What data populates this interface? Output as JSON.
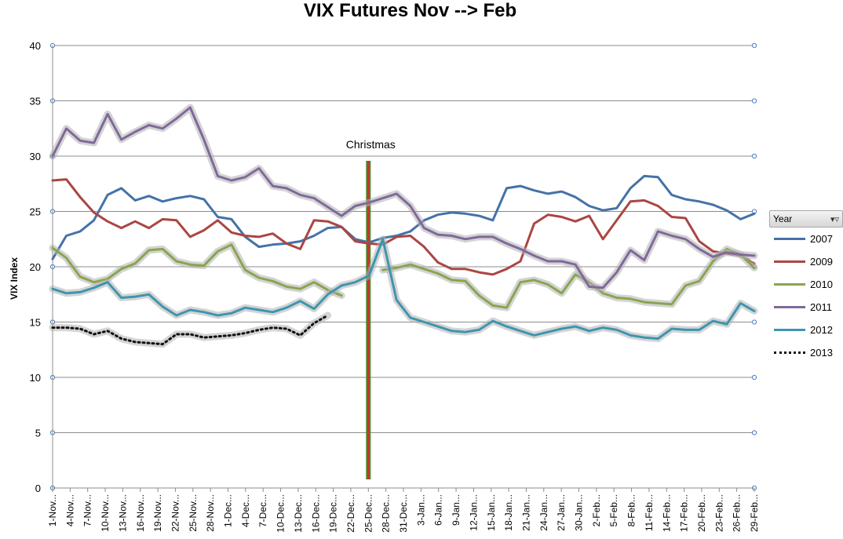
{
  "chart_data": {
    "type": "line",
    "title": "VIX Futures Nov --> Feb",
    "ylabel": "VIX Index",
    "xlabel": "",
    "ylim": [
      0,
      40
    ],
    "yticks": [
      0,
      5,
      10,
      15,
      20,
      25,
      30,
      35,
      40
    ],
    "grid": true,
    "legend_title": "Year",
    "legend_position": "right",
    "annotation": {
      "text": "Christmas",
      "x_label": "25-Dec..."
    },
    "x_tick_labels": [
      "1-Nov...",
      "4-Nov...",
      "7-Nov...",
      "10-Nov...",
      "13-Nov...",
      "16-Nov...",
      "19-Nov...",
      "22-Nov...",
      "25-Nov...",
      "28-Nov...",
      "1-Dec...",
      "4-Dec...",
      "7-Dec...",
      "10-Dec...",
      "13-Dec...",
      "16-Dec...",
      "19-Dec...",
      "22-Dec...",
      "25-Dec...",
      "28-Dec...",
      "31-Dec...",
      "3-Jan...",
      "6-Jan...",
      "9-Jan...",
      "12-Jan...",
      "15-Jan...",
      "18-Jan...",
      "21-Jan...",
      "24-Jan...",
      "27-Jan...",
      "30-Jan...",
      "2-Feb...",
      "5-Feb...",
      "8-Feb...",
      "11-Feb...",
      "14-Feb...",
      "17-Feb...",
      "20-Feb...",
      "23-Feb...",
      "26-Feb...",
      "29-Feb..."
    ],
    "series": [
      {
        "name": "2007",
        "color": "#4572a7",
        "style": "solid",
        "values": [
          20.7,
          22.8,
          23.2,
          24.2,
          26.5,
          27.1,
          26.0,
          26.4,
          25.9,
          26.2,
          26.4,
          26.1,
          24.5,
          24.3,
          22.7,
          21.8,
          22.0,
          22.1,
          22.3,
          22.8,
          23.5,
          23.6,
          22.5,
          22.2,
          22.6,
          22.8,
          23.2,
          24.2,
          24.7,
          24.9,
          24.8,
          24.6,
          24.2,
          27.1,
          27.3,
          26.9,
          26.6,
          26.8,
          26.3,
          25.5,
          25.1,
          25.3,
          27.1,
          28.2,
          28.1,
          26.5,
          26.1,
          25.9,
          25.6,
          25.1,
          24.3,
          24.8
        ]
      },
      {
        "name": "2009",
        "color": "#aa4643",
        "style": "solid",
        "values": [
          27.8,
          27.9,
          26.3,
          24.9,
          24.1,
          23.5,
          24.1,
          23.5,
          24.3,
          24.2,
          22.7,
          23.3,
          24.2,
          23.1,
          22.8,
          22.7,
          23.0,
          22.1,
          21.6,
          24.2,
          24.1,
          23.6,
          22.3,
          22.1,
          22.0,
          22.7,
          22.8,
          21.8,
          20.4,
          19.8,
          19.8,
          19.5,
          19.3,
          19.8,
          20.5,
          23.9,
          24.7,
          24.5,
          24.1,
          24.6,
          22.5,
          24.2,
          25.9,
          26.0,
          25.5,
          24.5,
          24.4,
          22.3,
          21.4,
          21.2,
          21.0,
          20.3
        ]
      },
      {
        "name": "2010",
        "color": "#89a54e",
        "style": "solid",
        "values": [
          21.7,
          20.8,
          19.1,
          18.6,
          18.9,
          19.8,
          20.3,
          21.5,
          21.6,
          20.5,
          20.2,
          20.1,
          21.4,
          22.0,
          19.7,
          19.0,
          18.7,
          18.2,
          18.0,
          18.6,
          17.9,
          17.4,
          null,
          null,
          19.7,
          19.9,
          20.2,
          19.8,
          19.4,
          18.8,
          18.7,
          17.4,
          16.5,
          16.3,
          18.6,
          18.8,
          18.4,
          17.6,
          19.3,
          18.6,
          17.6,
          17.2,
          17.1,
          16.8,
          16.7,
          16.6,
          18.3,
          18.7,
          20.5,
          21.6,
          21.1,
          19.9
        ]
      },
      {
        "name": "2011",
        "color": "#80699b",
        "style": "solid",
        "values": [
          30.0,
          32.5,
          31.4,
          31.2,
          33.8,
          31.5,
          32.2,
          32.8,
          32.5,
          33.4,
          34.4,
          31.5,
          28.2,
          27.8,
          28.1,
          28.9,
          27.3,
          27.1,
          26.5,
          26.2,
          25.4,
          24.6,
          25.5,
          25.8,
          26.2,
          26.6,
          25.5,
          23.5,
          22.9,
          22.8,
          22.5,
          22.7,
          22.7,
          22.1,
          21.6,
          21.0,
          20.5,
          20.5,
          20.2,
          18.2,
          18.1,
          19.5,
          21.5,
          20.6,
          23.2,
          22.8,
          22.5,
          21.6,
          20.9,
          21.3,
          21.1,
          21.0
        ]
      },
      {
        "name": "2012",
        "color": "#3d96ae",
        "style": "solid",
        "values": [
          18.0,
          17.6,
          17.7,
          18.1,
          18.6,
          17.2,
          17.3,
          17.5,
          16.4,
          15.6,
          16.1,
          15.9,
          15.6,
          15.8,
          16.3,
          16.1,
          15.9,
          16.3,
          16.9,
          16.2,
          17.5,
          18.3,
          18.6,
          19.2,
          22.5,
          17.0,
          15.4,
          15.0,
          14.6,
          14.2,
          14.1,
          14.3,
          15.1,
          14.6,
          14.2,
          13.8,
          14.1,
          14.4,
          14.6,
          14.2,
          14.5,
          14.3,
          13.8,
          13.6,
          13.5,
          14.4,
          14.3,
          14.3,
          15.1,
          14.8,
          16.7,
          16.0
        ]
      },
      {
        "name": "2013",
        "color": "#111111",
        "style": "dotted",
        "values": [
          14.5,
          14.5,
          14.4,
          13.9,
          14.2,
          13.5,
          13.2,
          13.1,
          13.0,
          13.9,
          13.9,
          13.6,
          13.7,
          13.8,
          14.0,
          14.3,
          14.5,
          14.4,
          13.8,
          14.9,
          15.6,
          null,
          null,
          null,
          null,
          null,
          null,
          null,
          null,
          null,
          null,
          null,
          null,
          null,
          null,
          null,
          null,
          null,
          null,
          null,
          null,
          null,
          null,
          null,
          null,
          null,
          null,
          null,
          null,
          null,
          null,
          null
        ]
      }
    ]
  }
}
